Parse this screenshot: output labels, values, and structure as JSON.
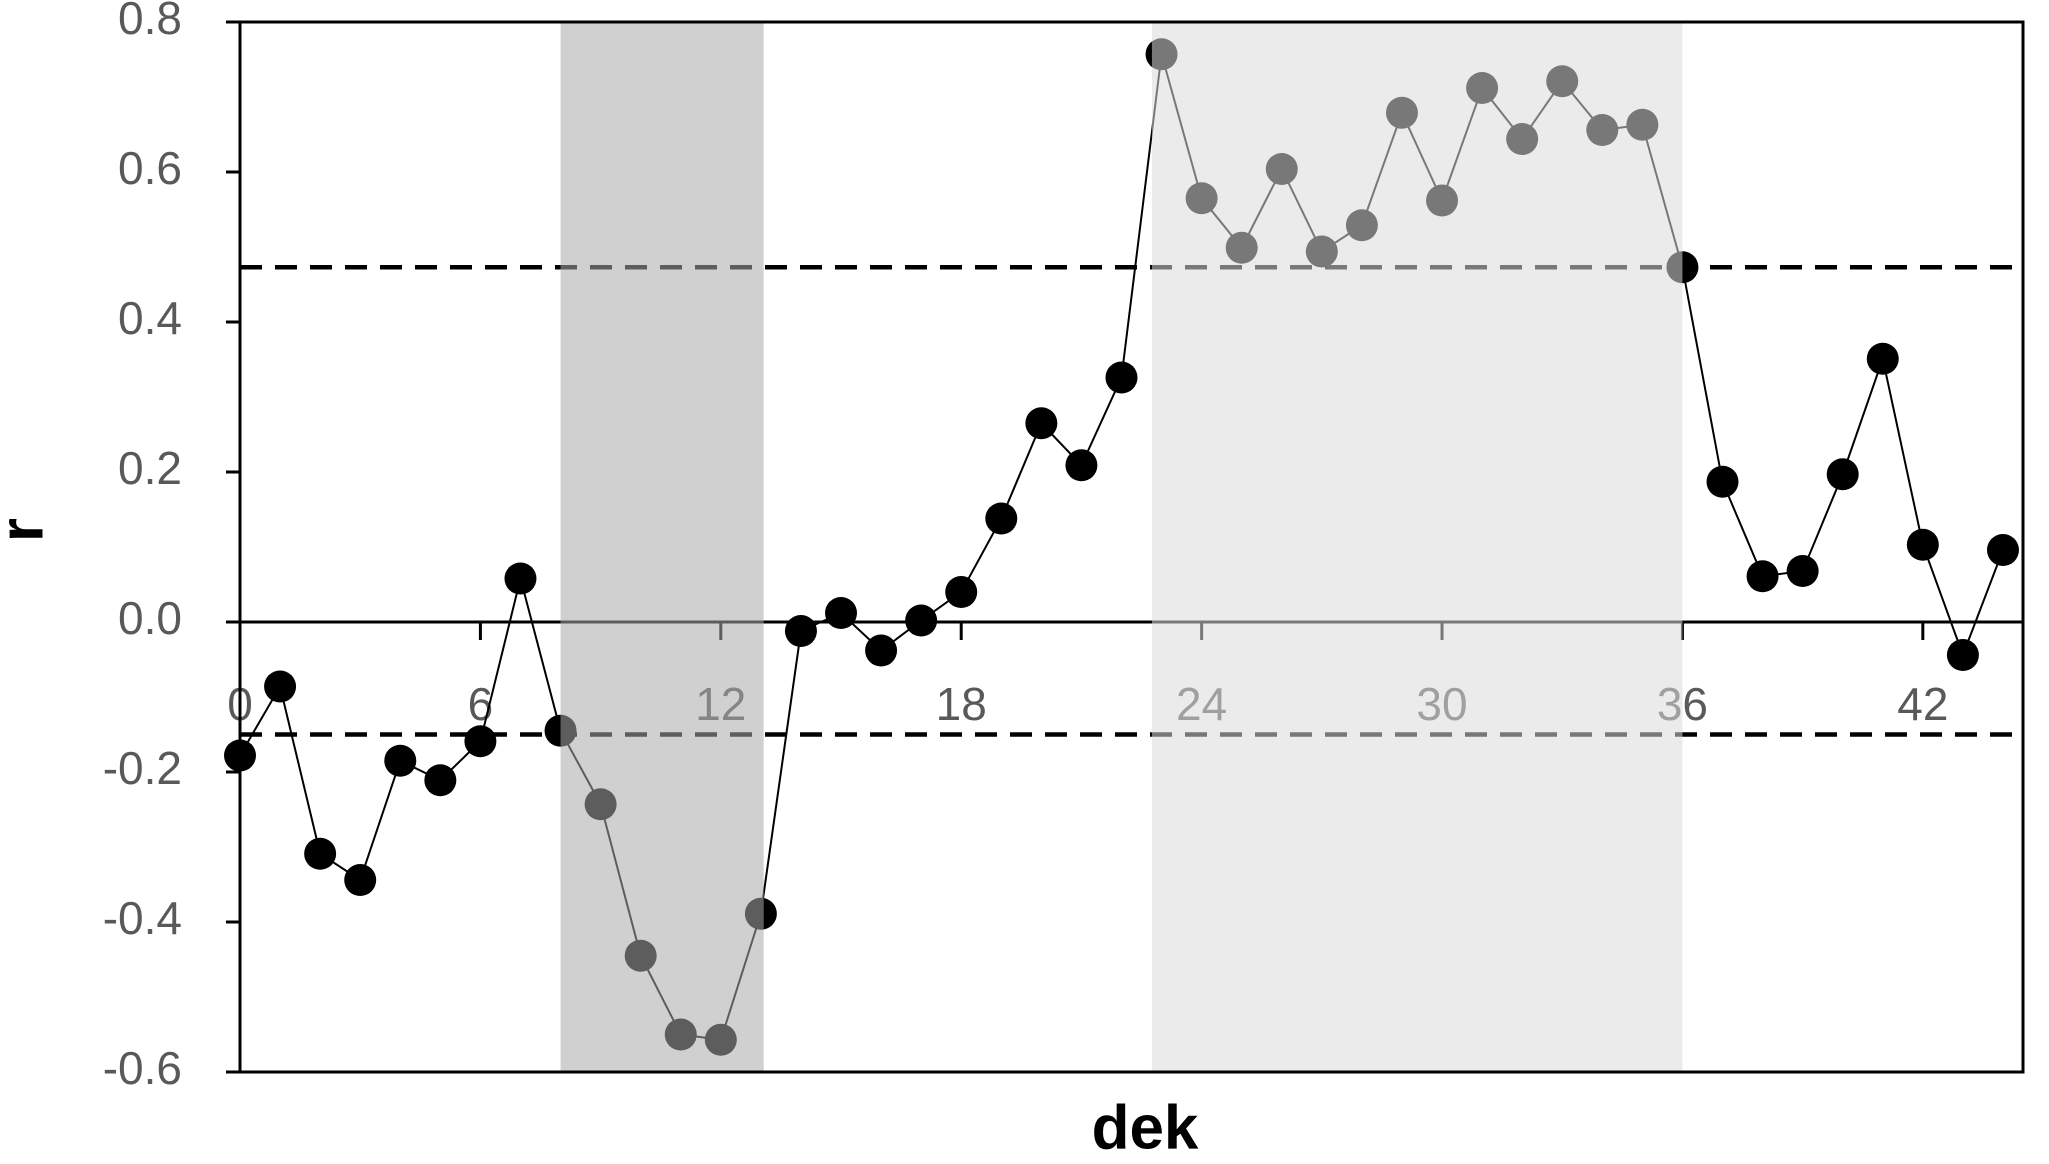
{
  "chart_data": {
    "type": "line",
    "x_label": "dek",
    "y_label": "r",
    "x": [
      0,
      1,
      2,
      3,
      4,
      5,
      6,
      7,
      8,
      9,
      10,
      11,
      12,
      13,
      14,
      15,
      16,
      17,
      18,
      19,
      20,
      21,
      22,
      23,
      24,
      25,
      26,
      27,
      28,
      29,
      30,
      31,
      32,
      33,
      34,
      35,
      36,
      37,
      38,
      39,
      40,
      41,
      42,
      43,
      44
    ],
    "series": [
      {
        "color": "#000000",
        "values": [
          -0.178,
          -0.086,
          -0.309,
          -0.344,
          -0.185,
          -0.211,
          -0.159,
          0.058,
          -0.145,
          -0.243,
          -0.445,
          -0.55,
          -0.557,
          -0.389,
          -0.012,
          0.012,
          -0.038,
          0.002,
          0.04,
          0.138,
          0.265,
          0.209,
          0.326,
          0.757,
          0.565,
          0.499,
          0.604,
          0.494,
          0.529,
          0.679,
          0.562,
          0.712,
          0.644,
          0.721,
          0.656,
          0.663,
          0.473,
          0.187,
          0.061,
          0.068,
          0.197,
          0.351,
          0.103,
          -0.044,
          0.096
        ]
      }
    ],
    "xlim": [
      0,
      44.5
    ],
    "ylim": [
      -0.6,
      0.8
    ],
    "xticks": [
      0,
      6,
      12,
      18,
      24,
      30,
      36,
      42
    ],
    "yticks": [
      {
        "value": -0.6,
        "label": "-0.6"
      },
      {
        "value": -0.4,
        "label": "-0.4"
      },
      {
        "value": -0.2,
        "label": "-0.2"
      },
      {
        "value": 0,
        "label": "0.0"
      },
      {
        "value": 0.2,
        "label": "0.2"
      },
      {
        "value": 0.4,
        "label": "0.4"
      },
      {
        "value": 0.6,
        "label": "0.6"
      },
      {
        "value": 0.8,
        "label": "0.8"
      }
    ],
    "hlines": [
      0.473,
      -0.15
    ],
    "shaded_regions": [
      {
        "x": [
          8,
          13.07
        ],
        "color": "#aaaaaa"
      },
      {
        "x": [
          22.76,
          36
        ],
        "color": "#dadada"
      }
    ]
  }
}
